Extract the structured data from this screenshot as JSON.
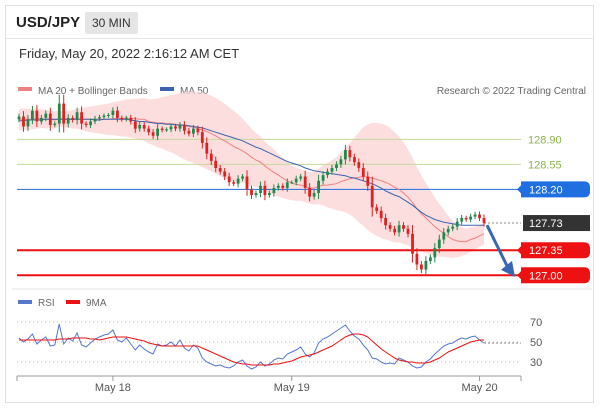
{
  "header": {
    "symbol": "USD/JPY",
    "interval": "30 MIN",
    "datetime": "Friday, May 20, 2022 2:16:12 AM CET"
  },
  "colors": {
    "ma20": "#f08080",
    "ma50": "#3b63b0",
    "band": "#fbd3d3",
    "up": "#1f8a4c",
    "down": "#e02020",
    "resistance_green": "#8db04d",
    "current": "#333333",
    "pivot_blue": "#1f6fe0",
    "support_red": "#ee1111",
    "rsi": "#5577cc",
    "rsi_ma": "#ee1111"
  },
  "chart_data": [
    {
      "type": "candlestick",
      "legend": [
        "MA 20 + Bollinger Bands",
        "MA 50"
      ],
      "legend_placement": "top-left",
      "credit": "Research © 2022 Trading Central",
      "y_range": [
        126.85,
        129.45
      ],
      "x_ticks": [
        {
          "label": "May 18",
          "index": 21
        },
        {
          "label": "May 19",
          "index": 61
        },
        {
          "label": "May 20",
          "index": 103
        }
      ],
      "levels": [
        {
          "value": 128.9,
          "label": "128.90",
          "kind": "resistance_green"
        },
        {
          "value": 128.55,
          "label": "128.55",
          "kind": "resistance_green"
        },
        {
          "value": 128.2,
          "label": "128.20",
          "kind": "pivot_blue"
        },
        {
          "value": 127.73,
          "label": "127.73",
          "kind": "current"
        },
        {
          "value": 127.35,
          "label": "127.35",
          "kind": "support_red"
        },
        {
          "value": 127.0,
          "label": "127.00",
          "kind": "support_red"
        }
      ],
      "current_price": 127.73,
      "arrow": {
        "from": 127.7,
        "to": 127.02
      },
      "close": [
        129.22,
        129.08,
        129.18,
        129.3,
        129.15,
        129.2,
        129.26,
        129.1,
        129.12,
        129.4,
        129.12,
        129.2,
        129.17,
        129.28,
        129.12,
        129.1,
        129.15,
        129.19,
        129.21,
        129.23,
        129.24,
        129.3,
        129.2,
        129.18,
        129.2,
        129.15,
        129.05,
        129.1,
        129.05,
        129.0,
        128.95,
        129.05,
        129.03,
        129.04,
        129.08,
        129.05,
        129.1,
        129.02,
        128.98,
        129.05,
        129.0,
        128.85,
        128.7,
        128.6,
        128.5,
        128.45,
        128.38,
        128.3,
        128.28,
        128.35,
        128.38,
        128.2,
        128.12,
        128.15,
        128.25,
        128.12,
        128.15,
        128.22,
        128.25,
        128.22,
        128.3,
        128.3,
        128.35,
        128.38,
        128.22,
        128.1,
        128.15,
        128.32,
        128.4,
        128.45,
        128.5,
        128.55,
        128.62,
        128.75,
        128.65,
        128.58,
        128.5,
        128.38,
        128.25,
        127.95,
        127.9,
        127.8,
        127.7,
        127.65,
        127.6,
        127.7,
        127.65,
        127.58,
        127.3,
        127.15,
        127.08,
        127.2,
        127.25,
        127.38,
        127.5,
        127.6,
        127.65,
        127.68,
        127.75,
        127.8,
        127.78,
        127.82,
        127.85,
        127.8,
        127.73
      ],
      "ma20": [
        129.18,
        129.18,
        129.18,
        129.18,
        129.19,
        129.19,
        129.18,
        129.18,
        129.17,
        129.19,
        129.18,
        129.18,
        129.18,
        129.19,
        129.18,
        129.18,
        129.18,
        129.18,
        129.18,
        129.18,
        129.18,
        129.19,
        129.19,
        129.19,
        129.2,
        129.19,
        129.19,
        129.18,
        129.18,
        129.15,
        129.14,
        129.13,
        129.13,
        129.12,
        129.12,
        129.11,
        129.1,
        129.09,
        129.08,
        129.07,
        129.05,
        129.03,
        129.01,
        128.98,
        128.95,
        128.91,
        128.88,
        128.84,
        128.8,
        128.77,
        128.74,
        128.7,
        128.65,
        128.61,
        128.58,
        128.53,
        128.48,
        128.44,
        128.4,
        128.36,
        128.32,
        128.29,
        128.27,
        128.26,
        128.24,
        128.22,
        128.22,
        128.24,
        128.26,
        128.26,
        128.27,
        128.28,
        128.31,
        128.33,
        128.35,
        128.36,
        128.37,
        128.38,
        128.37,
        128.36,
        128.34,
        128.32,
        128.3,
        128.27,
        128.23,
        128.2,
        128.15,
        128.09,
        128.02,
        127.93,
        127.86,
        127.8,
        127.74,
        127.68,
        127.63,
        127.59,
        127.54,
        127.5,
        127.48,
        127.47,
        127.47,
        127.5,
        127.52,
        127.55,
        127.58
      ],
      "ma50": [
        129.16,
        129.16,
        129.17,
        129.17,
        129.17,
        129.17,
        129.18,
        129.18,
        129.18,
        129.18,
        129.18,
        129.18,
        129.18,
        129.18,
        129.18,
        129.18,
        129.18,
        129.17,
        129.17,
        129.18,
        129.18,
        129.18,
        129.18,
        129.18,
        129.18,
        129.17,
        129.16,
        129.15,
        129.15,
        129.14,
        129.13,
        129.12,
        129.12,
        129.11,
        129.11,
        129.1,
        129.1,
        129.1,
        129.09,
        129.08,
        129.07,
        129.06,
        129.04,
        129.02,
        129.0,
        128.98,
        128.96,
        128.94,
        128.92,
        128.9,
        128.88,
        128.85,
        128.82,
        128.79,
        128.77,
        128.74,
        128.71,
        128.68,
        128.65,
        128.62,
        128.59,
        128.57,
        128.55,
        128.53,
        128.5,
        128.48,
        128.46,
        128.45,
        128.44,
        128.43,
        128.42,
        128.41,
        128.4,
        128.39,
        128.37,
        128.36,
        128.34,
        128.32,
        128.3,
        128.28,
        128.25,
        128.22,
        128.18,
        128.15,
        128.12,
        128.1,
        128.06,
        128.02,
        127.98,
        127.93,
        127.88,
        127.84,
        127.81,
        127.78,
        127.76,
        127.74,
        127.73,
        127.72,
        127.71,
        127.7,
        127.7,
        127.7,
        127.7,
        127.7,
        127.7
      ],
      "band_width": [
        0.15,
        0.15,
        0.15,
        0.14,
        0.14,
        0.13,
        0.13,
        0.12,
        0.12,
        0.11,
        0.11,
        0.12,
        0.13,
        0.14,
        0.15,
        0.17,
        0.18,
        0.19,
        0.2,
        0.21,
        0.22,
        0.23,
        0.24,
        0.25,
        0.26,
        0.27,
        0.28,
        0.29,
        0.3,
        0.31,
        0.32,
        0.34,
        0.36,
        0.38,
        0.4,
        0.42,
        0.45,
        0.47,
        0.49,
        0.5,
        0.51,
        0.52,
        0.53,
        0.53,
        0.53,
        0.53,
        0.52,
        0.51,
        0.5,
        0.48,
        0.45,
        0.42,
        0.4,
        0.38,
        0.36,
        0.34,
        0.33,
        0.32,
        0.3,
        0.28,
        0.26,
        0.24,
        0.23,
        0.22,
        0.22,
        0.22,
        0.23,
        0.25,
        0.28,
        0.31,
        0.34,
        0.37,
        0.41,
        0.45,
        0.5,
        0.56,
        0.63,
        0.69,
        0.74,
        0.77,
        0.79,
        0.8,
        0.8,
        0.79,
        0.77,
        0.74,
        0.71,
        0.67,
        0.63,
        0.58,
        0.53,
        0.49,
        0.45,
        0.41,
        0.37,
        0.33,
        0.29,
        0.26,
        0.23,
        0.2,
        0.18,
        0.17,
        0.16,
        0.15,
        0.15
      ]
    },
    {
      "type": "line",
      "legend": [
        "RSI",
        "9MA"
      ],
      "legend_placement": "top-left",
      "y_range": [
        20,
        80
      ],
      "y_ticks": [
        {
          "value": 70,
          "label": "70"
        },
        {
          "value": 50,
          "label": "50"
        },
        {
          "value": 30,
          "label": "30"
        }
      ],
      "series": [
        {
          "name": "RSI",
          "values": [
            54,
            50,
            53,
            58,
            48,
            52,
            55,
            46,
            47,
            68,
            48,
            54,
            51,
            59,
            47,
            45,
            49,
            53,
            55,
            57,
            58,
            62,
            52,
            50,
            54,
            48,
            42,
            47,
            43,
            40,
            38,
            48,
            46,
            47,
            50,
            46,
            52,
            44,
            41,
            47,
            44,
            34,
            30,
            28,
            26,
            27,
            25,
            24,
            26,
            30,
            32,
            26,
            23,
            25,
            30,
            26,
            28,
            32,
            34,
            33,
            38,
            40,
            42,
            45,
            38,
            35,
            39,
            49,
            53,
            55,
            58,
            61,
            64,
            67,
            61,
            56,
            53,
            47,
            42,
            34,
            33,
            30,
            28,
            29,
            28,
            34,
            32,
            30,
            26,
            24,
            25,
            30,
            33,
            38,
            42,
            46,
            48,
            49,
            52,
            54,
            53,
            55,
            56,
            52,
            49
          ]
        },
        {
          "name": "9MA",
          "values": [
            52,
            52,
            52,
            52,
            52,
            52,
            52,
            52,
            52,
            53,
            53,
            53,
            54,
            54,
            54,
            54,
            53,
            53,
            52,
            53,
            54,
            55,
            55,
            55,
            55,
            54,
            53,
            52,
            51,
            49,
            48,
            47,
            46,
            46,
            46,
            46,
            46,
            46,
            46,
            46,
            46,
            44,
            42,
            40,
            38,
            36,
            34,
            32,
            30,
            29,
            28,
            28,
            27,
            27,
            27,
            27,
            27,
            28,
            28,
            29,
            30,
            31,
            33,
            35,
            36,
            37,
            38,
            40,
            42,
            44,
            46,
            49,
            52,
            55,
            57,
            58,
            58,
            57,
            55,
            51,
            47,
            43,
            40,
            37,
            34,
            32,
            31,
            30,
            30,
            29,
            29,
            29,
            30,
            32,
            34,
            37,
            40,
            42,
            44,
            46,
            48,
            50,
            51,
            52,
            52
          ]
        }
      ]
    }
  ]
}
